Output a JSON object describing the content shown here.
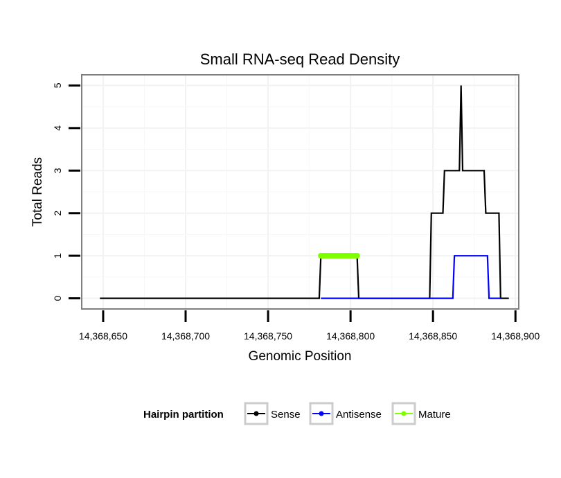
{
  "chart_data": {
    "type": "line",
    "title": "Small RNA-seq Read Density",
    "xlabel": "Genomic Position",
    "ylabel": "Total Reads",
    "xlim": [
      14368637,
      14368902
    ],
    "ylim": [
      -0.25,
      5.25
    ],
    "x_ticks": [
      14368650,
      14368700,
      14368750,
      14368800,
      14368850,
      14368900
    ],
    "x_tick_labels": [
      "14,368,650",
      "14,368,700",
      "14,368,750",
      "14,368,800",
      "14,368,850",
      "14,368,900"
    ],
    "y_ticks": [
      0,
      1,
      2,
      3,
      4,
      5
    ],
    "y_tick_labels": [
      "0",
      "1",
      "2",
      "3",
      "4",
      "5"
    ],
    "grid": true,
    "legend": {
      "title": "Hairpin partition",
      "position": "bottom",
      "entries": [
        "Sense",
        "Antisense",
        "Mature"
      ]
    },
    "series": [
      {
        "name": "Sense",
        "color": "#000000",
        "x": [
          14368648,
          14368781,
          14368782,
          14368804,
          14368805,
          14368848,
          14368849,
          14368856,
          14368857,
          14368866,
          14368867,
          14368868,
          14368869,
          14368881,
          14368882,
          14368890,
          14368891,
          14368896
        ],
        "y": [
          0,
          0,
          1,
          1,
          0,
          0,
          2,
          2,
          3,
          3,
          5,
          3,
          3,
          3,
          2,
          2,
          0,
          0
        ]
      },
      {
        "name": "Antisense",
        "color": "#0000ff",
        "x": [
          14368782,
          14368862,
          14368863,
          14368883,
          14368884,
          14368891
        ],
        "y": [
          0,
          0,
          1,
          1,
          0,
          0
        ]
      },
      {
        "name": "Mature",
        "color": "#7fff00",
        "x": [
          14368782,
          14368783,
          14368784,
          14368785,
          14368786,
          14368787,
          14368788,
          14368789,
          14368790,
          14368791,
          14368792,
          14368793,
          14368794,
          14368795,
          14368796,
          14368797,
          14368798,
          14368799,
          14368800,
          14368801,
          14368802,
          14368803,
          14368804
        ],
        "y": [
          1,
          1,
          1,
          1,
          1,
          1,
          1,
          1,
          1,
          1,
          1,
          1,
          1,
          1,
          1,
          1,
          1,
          1,
          1,
          1,
          1,
          1,
          1
        ]
      }
    ]
  }
}
